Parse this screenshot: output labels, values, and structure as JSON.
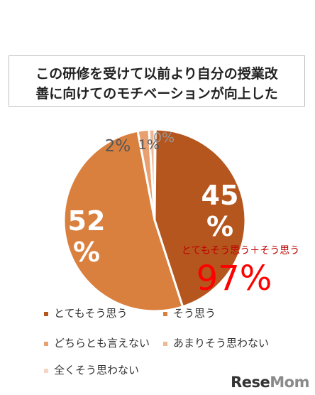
{
  "chart_data": {
    "type": "pie",
    "title_lines": [
      "この研修を受けて以前より自分の授業改",
      "善に向けてのモチベーションが向上した"
    ],
    "slices": [
      {
        "name": "とてもそう思う",
        "value": 45,
        "label": "45",
        "color": "#b5561e"
      },
      {
        "name": "そう思う",
        "value": 52,
        "label": "52",
        "color": "#d9803f"
      },
      {
        "name": "どちらとも言えない",
        "value": 2,
        "label": "2%",
        "color": "#e8a070"
      },
      {
        "name": "あまりそう思わない",
        "value": 1,
        "label": "1%",
        "color": "#f0b894"
      },
      {
        "name": "全くそう思わない",
        "value": 0,
        "label": "0%",
        "color": "#f5d6c2"
      }
    ],
    "annotation": {
      "caption": "とてもそう思う＋そう思う",
      "value": "97%"
    }
  },
  "percent_symbol": "%",
  "watermark": {
    "part1": "Rese",
    "part2": "Mom"
  }
}
